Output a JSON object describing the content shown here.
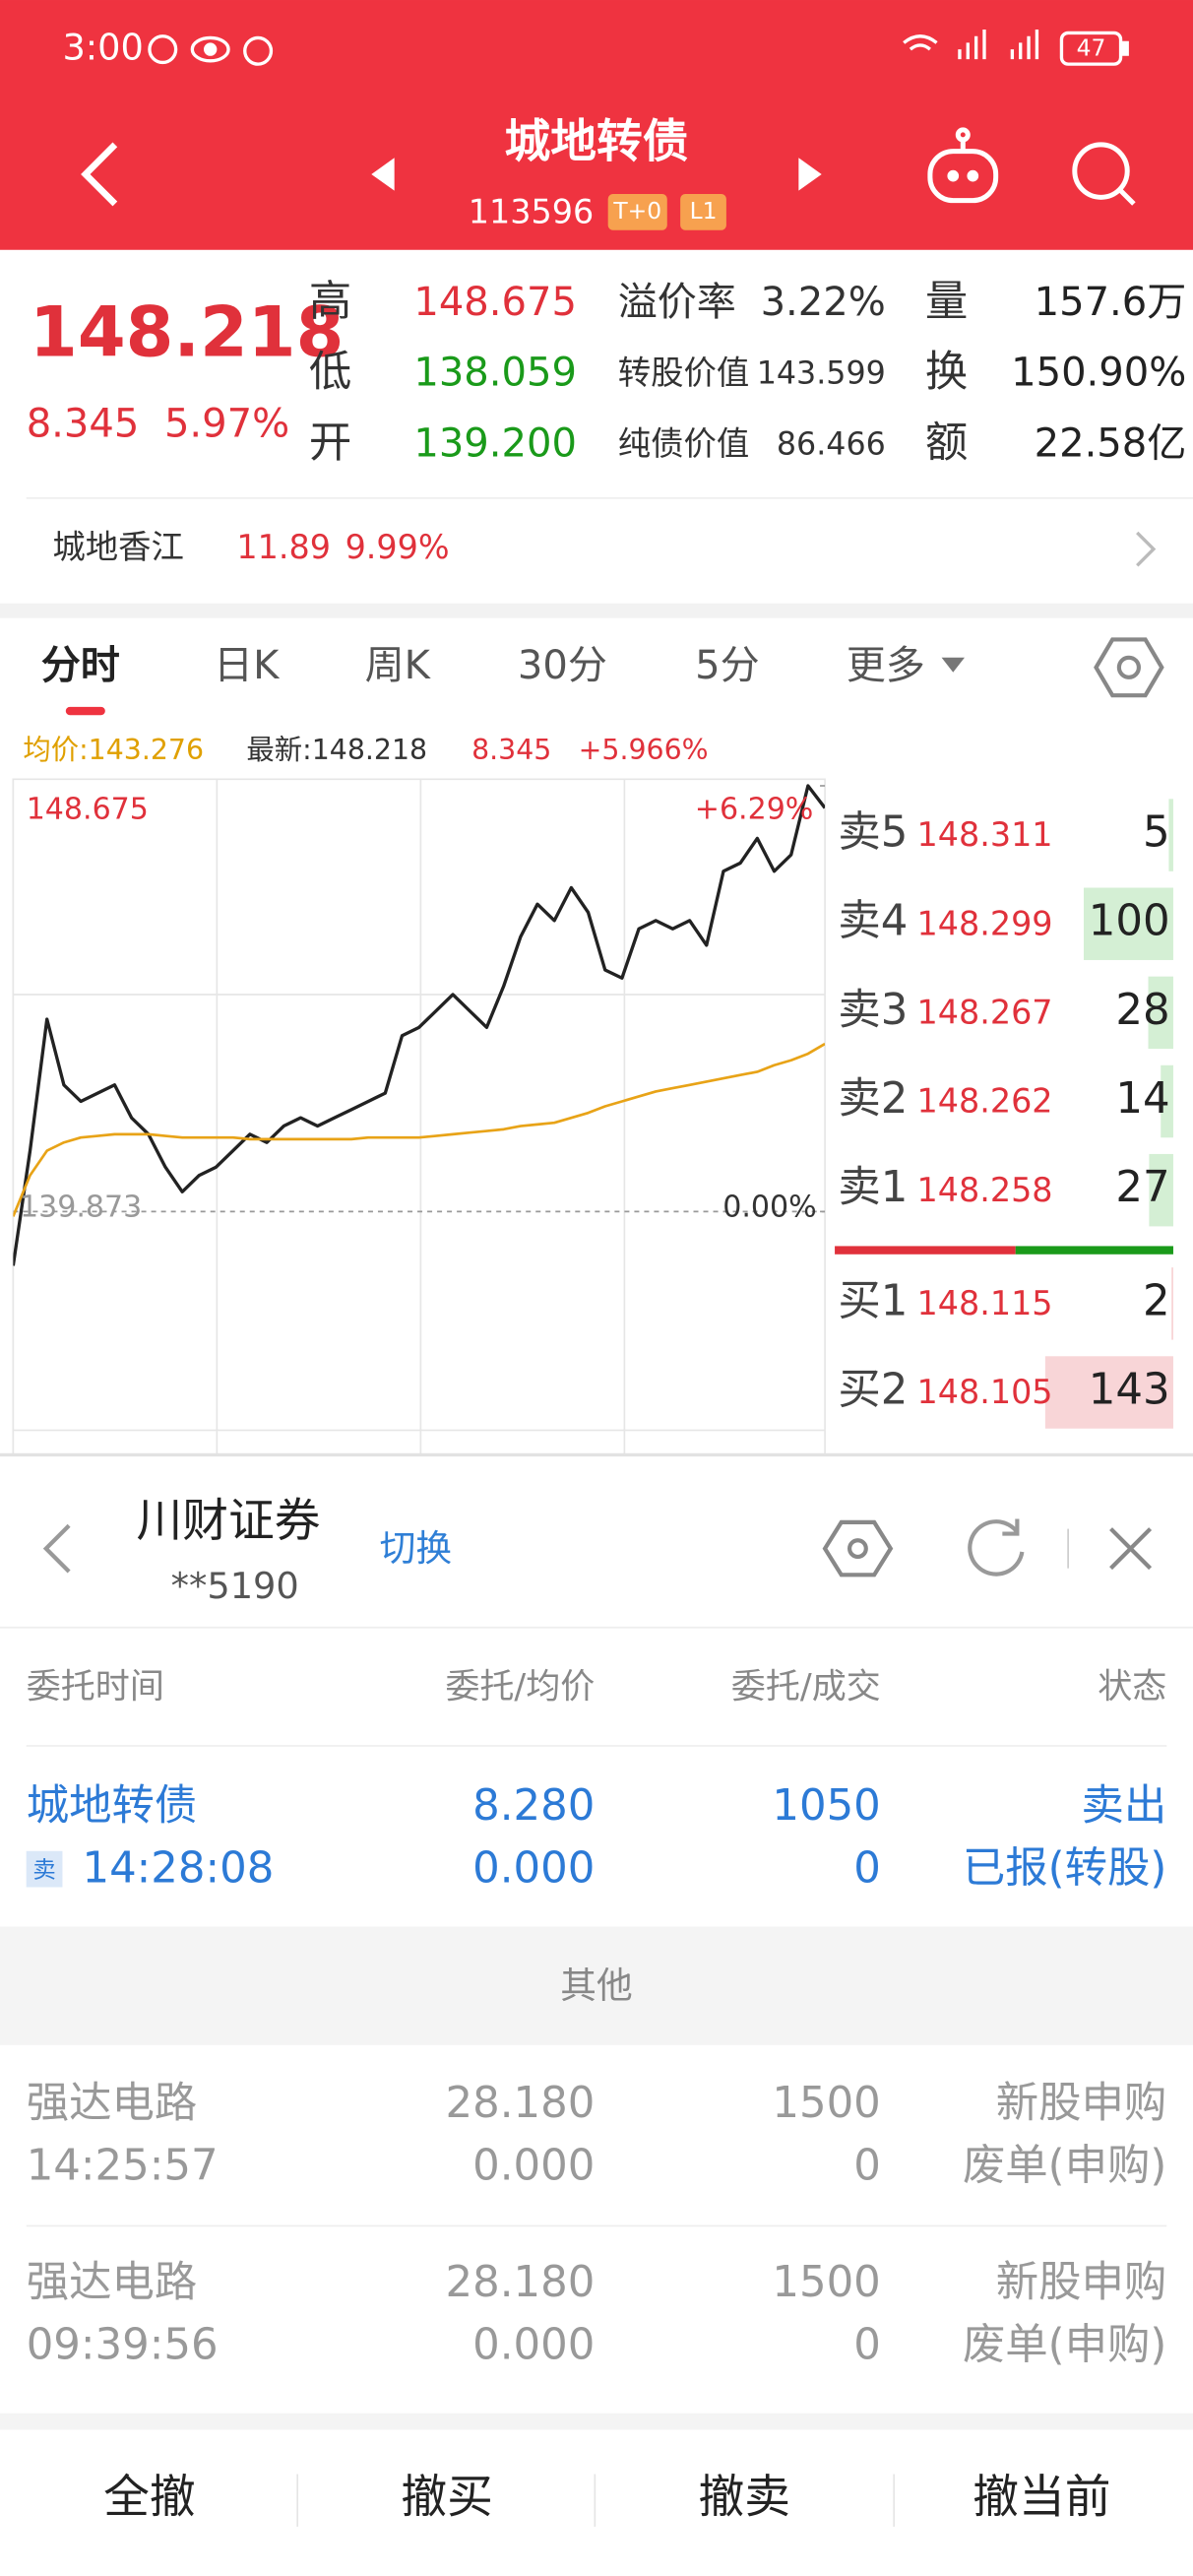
{
  "status_bar": {
    "time": "3:00",
    "battery": "47"
  },
  "header": {
    "title": "城地转债",
    "code": "113596",
    "tags": [
      "T+0",
      "L1"
    ]
  },
  "quote": {
    "price": "148.218",
    "change": "8.345",
    "change_pct": "5.97%",
    "stats": [
      {
        "label": "高",
        "value": "148.675"
      },
      {
        "label": "低",
        "value": "138.059"
      },
      {
        "label": "开",
        "value": "139.200"
      }
    ],
    "bond_stats": [
      {
        "label": "溢价率",
        "value": "3.22%"
      },
      {
        "label": "转股价值",
        "value": "143.599"
      },
      {
        "label": "纯债价值",
        "value": "86.466"
      }
    ],
    "trade_stats": [
      {
        "label": "量",
        "value": "157.6万"
      },
      {
        "label": "换",
        "value": "150.90%"
      },
      {
        "label": "额",
        "value": "22.58亿"
      }
    ]
  },
  "underlying": {
    "name": "城地香江",
    "price": "11.89",
    "change_pct": "9.99%"
  },
  "tabs": [
    "分时",
    "日K",
    "周K",
    "30分",
    "5分",
    "更多"
  ],
  "summary": {
    "avg": "均价:143.276",
    "latest": "最新:148.218",
    "change": "8.345",
    "change_pct": "+5.966%"
  },
  "chart_data": {
    "type": "line",
    "x": [
      0,
      5,
      10,
      15,
      20,
      25,
      30,
      35,
      40,
      45,
      50,
      55,
      60,
      65,
      70,
      75,
      80,
      85,
      90,
      95,
      100,
      105,
      110,
      115,
      120,
      125,
      130,
      135,
      140,
      145,
      150,
      155,
      160,
      165,
      170,
      175,
      180,
      185,
      190,
      195,
      200,
      205,
      210,
      215,
      220,
      225,
      230,
      235,
      240
    ],
    "xlim": [
      0,
      240
    ],
    "ylim": [
      131.071,
      148.675
    ],
    "yticks": [
      148.675,
      139.873
    ],
    "y2lim": [
      -6.29,
      6.29
    ],
    "y2ticks": [
      {
        "value": 6.29,
        "label": "+6.29%"
      },
      {
        "value": 0,
        "label": "0.00%"
      }
    ],
    "series": [
      {
        "color": "#222222",
        "values": [
          138.753,
          141.131,
          143.85,
          142.491,
          142.151,
          142.321,
          142.491,
          141.811,
          141.471,
          140.792,
          140.282,
          140.622,
          140.792,
          141.131,
          141.471,
          141.301,
          141.641,
          141.811,
          141.641,
          141.811,
          141.981,
          142.151,
          142.321,
          143.51,
          143.68,
          144.02,
          144.36,
          144.02,
          143.68,
          144.529,
          145.549,
          146.228,
          145.889,
          146.568,
          146.059,
          144.869,
          144.699,
          145.719,
          145.889,
          145.719,
          145.889,
          145.379,
          146.908,
          147.078,
          147.588,
          146.908,
          147.248,
          148.675,
          148.218
        ]
      },
      {
        "color": "#e8a317",
        "values": [
          139.772,
          140.622,
          141.131,
          141.301,
          141.403,
          141.437,
          141.471,
          141.471,
          141.471,
          141.437,
          141.403,
          141.403,
          141.403,
          141.403,
          141.369,
          141.369,
          141.369,
          141.369,
          141.369,
          141.369,
          141.369,
          141.403,
          141.403,
          141.403,
          141.403,
          141.437,
          141.471,
          141.505,
          141.539,
          141.573,
          141.641,
          141.675,
          141.709,
          141.811,
          141.913,
          142.049,
          142.151,
          142.253,
          142.355,
          142.423,
          142.491,
          142.559,
          142.627,
          142.695,
          142.762,
          142.898,
          143.0,
          143.136,
          143.34
        ]
      }
    ]
  },
  "order_book": {
    "asks": [
      {
        "label": "卖5",
        "price": "148.311",
        "volume": 5
      },
      {
        "label": "卖4",
        "price": "148.299",
        "volume": 100
      },
      {
        "label": "卖3",
        "price": "148.267",
        "volume": 28
      },
      {
        "label": "卖2",
        "price": "148.262",
        "volume": 14
      },
      {
        "label": "卖1",
        "price": "148.258",
        "volume": 27
      }
    ],
    "bids": [
      {
        "label": "买1",
        "price": "148.115",
        "volume": 2
      },
      {
        "label": "买2",
        "price": "148.105",
        "volume": 143
      }
    ]
  },
  "account": {
    "broker": "川财证券",
    "id": "**5190",
    "switch": "切换"
  },
  "orders": {
    "headers": [
      "委托时间",
      "委托/均价",
      "委托/成交",
      "状态"
    ],
    "rows": [
      {
        "name": "城地转债",
        "side": "卖",
        "time": "14:28:08",
        "price": "8.280",
        "avg": "0.000",
        "quantity": "1050",
        "filled": "0",
        "action": "卖出",
        "status": "已报(转股)"
      }
    ],
    "section": "其他",
    "other_rows": [
      {
        "name": "强达电路",
        "time": "14:25:57",
        "price": "28.180",
        "avg": "0.000",
        "quantity": "1500",
        "filled": "0",
        "action": "新股申购",
        "status": "废单(申购)"
      },
      {
        "name": "强达电路",
        "time": "09:39:56",
        "price": "28.180",
        "avg": "0.000",
        "quantity": "1500",
        "filled": "0",
        "action": "新股申购",
        "status": "废单(申购)"
      }
    ]
  },
  "actions": [
    "全撤",
    "撤买",
    "撤卖",
    "撤当前"
  ]
}
